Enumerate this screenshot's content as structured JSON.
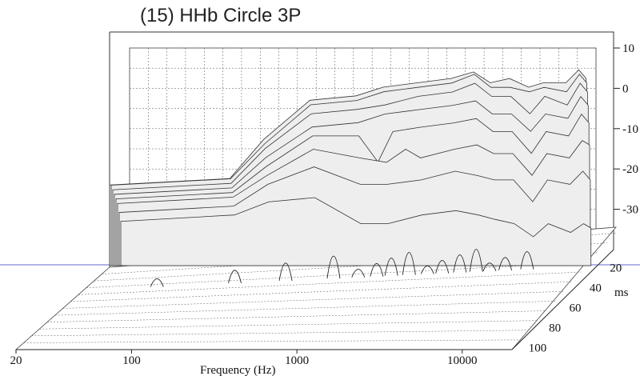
{
  "chart_data": {
    "type": "waterfall-3d",
    "title": "(15) HHb Circle 3P",
    "xlabel": "Frequency (Hz)",
    "zlabel": "ms",
    "x_ticks": [
      "20",
      "100",
      "1000",
      "10000"
    ],
    "z_ticks": [
      "20",
      "40",
      "60",
      "80",
      "100"
    ],
    "y_ticks": [
      "10",
      "0",
      "-10",
      "-20",
      "-30"
    ],
    "x_scale": "log",
    "xlim": [
      20,
      20000
    ],
    "ylim": [
      -40,
      10
    ],
    "grid": true,
    "colors": {
      "line": "#333333",
      "fill": "#eeeeee",
      "grid": "#555555",
      "guide": "#6666cc"
    },
    "series": [
      {
        "time_index": 0,
        "points": [
          [
            90,
            -20
          ],
          [
            150,
            -11
          ],
          [
            300,
            -2
          ],
          [
            600,
            -1
          ],
          [
            900,
            1
          ],
          [
            1500,
            2
          ],
          [
            2500,
            3
          ],
          [
            3500,
            4.5
          ],
          [
            4500,
            2
          ],
          [
            6000,
            3
          ],
          [
            8000,
            1
          ],
          [
            10000,
            2
          ],
          [
            14000,
            2
          ],
          [
            17000,
            5
          ],
          [
            19000,
            3
          ]
        ]
      },
      {
        "time_index": 1,
        "points": [
          [
            90,
            -20
          ],
          [
            150,
            -12
          ],
          [
            300,
            -3
          ],
          [
            600,
            -2
          ],
          [
            900,
            0
          ],
          [
            1500,
            1
          ],
          [
            2500,
            2
          ],
          [
            3500,
            4
          ],
          [
            4500,
            1
          ],
          [
            6000,
            1
          ],
          [
            8000,
            0
          ],
          [
            10000,
            1
          ],
          [
            14000,
            0
          ],
          [
            17000,
            4
          ],
          [
            19000,
            2
          ]
        ]
      },
      {
        "time_index": 2,
        "points": [
          [
            90,
            -21
          ],
          [
            150,
            -13
          ],
          [
            300,
            -5
          ],
          [
            600,
            -4
          ],
          [
            900,
            -3
          ],
          [
            1500,
            -1
          ],
          [
            2500,
            0
          ],
          [
            3500,
            2
          ],
          [
            4500,
            -1
          ],
          [
            6000,
            -1
          ],
          [
            8000,
            -5
          ],
          [
            10000,
            -1
          ],
          [
            14000,
            -3
          ],
          [
            17000,
            2
          ],
          [
            19000,
            0
          ]
        ]
      },
      {
        "time_index": 3,
        "points": [
          [
            90,
            -22
          ],
          [
            150,
            -15
          ],
          [
            300,
            -8
          ],
          [
            600,
            -7
          ],
          [
            900,
            -5
          ],
          [
            1500,
            -4
          ],
          [
            2500,
            -3
          ],
          [
            3500,
            -2
          ],
          [
            4500,
            -5
          ],
          [
            6000,
            -5
          ],
          [
            8000,
            -9
          ],
          [
            10000,
            -5
          ],
          [
            14000,
            -6
          ],
          [
            17000,
            -1
          ],
          [
            19000,
            -3
          ]
        ]
      },
      {
        "time_index": 4,
        "points": [
          [
            90,
            -23
          ],
          [
            150,
            -17
          ],
          [
            300,
            -10
          ],
          [
            600,
            -10
          ],
          [
            800,
            -16
          ],
          [
            1000,
            -9
          ],
          [
            1500,
            -8
          ],
          [
            2500,
            -7
          ],
          [
            3500,
            -6
          ],
          [
            4500,
            -9
          ],
          [
            6000,
            -9
          ],
          [
            8000,
            -14
          ],
          [
            10000,
            -9
          ],
          [
            14000,
            -10
          ],
          [
            17000,
            -5
          ],
          [
            19000,
            -7
          ]
        ]
      },
      {
        "time_index": 5,
        "points": [
          [
            90,
            -24
          ],
          [
            150,
            -19
          ],
          [
            300,
            -13
          ],
          [
            600,
            -15
          ],
          [
            900,
            -16
          ],
          [
            1200,
            -13
          ],
          [
            1500,
            -15
          ],
          [
            2500,
            -13
          ],
          [
            3500,
            -12
          ],
          [
            4500,
            -14
          ],
          [
            6000,
            -14
          ],
          [
            8000,
            -19
          ],
          [
            10000,
            -14
          ],
          [
            14000,
            -15
          ],
          [
            17000,
            -11
          ],
          [
            19000,
            -12
          ]
        ]
      },
      {
        "time_index": 6,
        "points": [
          [
            90,
            -26
          ],
          [
            150,
            -21
          ],
          [
            300,
            -17
          ],
          [
            600,
            -21
          ],
          [
            900,
            -21
          ],
          [
            1500,
            -20
          ],
          [
            2500,
            -18
          ],
          [
            3500,
            -19
          ],
          [
            4500,
            -20
          ],
          [
            6000,
            -20
          ],
          [
            8000,
            -25
          ],
          [
            10000,
            -20
          ],
          [
            14000,
            -21
          ],
          [
            17000,
            -18
          ],
          [
            19000,
            -20
          ]
        ]
      },
      {
        "time_index": 7,
        "points": [
          [
            90,
            -28
          ],
          [
            150,
            -25
          ],
          [
            300,
            -24
          ],
          [
            600,
            -30
          ],
          [
            900,
            -30
          ],
          [
            1500,
            -28
          ],
          [
            2500,
            -27
          ],
          [
            3500,
            -28
          ],
          [
            4500,
            -29
          ],
          [
            6000,
            -30
          ],
          [
            8000,
            -33
          ],
          [
            10000,
            -30
          ],
          [
            14000,
            -32
          ],
          [
            17000,
            -30
          ],
          [
            19000,
            -31
          ]
        ]
      }
    ],
    "early_reflection_peaks_hz": [
      45,
      130,
      260,
      500,
      700,
      900,
      1100,
      1400,
      1800,
      2200,
      2800,
      3500,
      4200,
      5200,
      7000
    ]
  }
}
